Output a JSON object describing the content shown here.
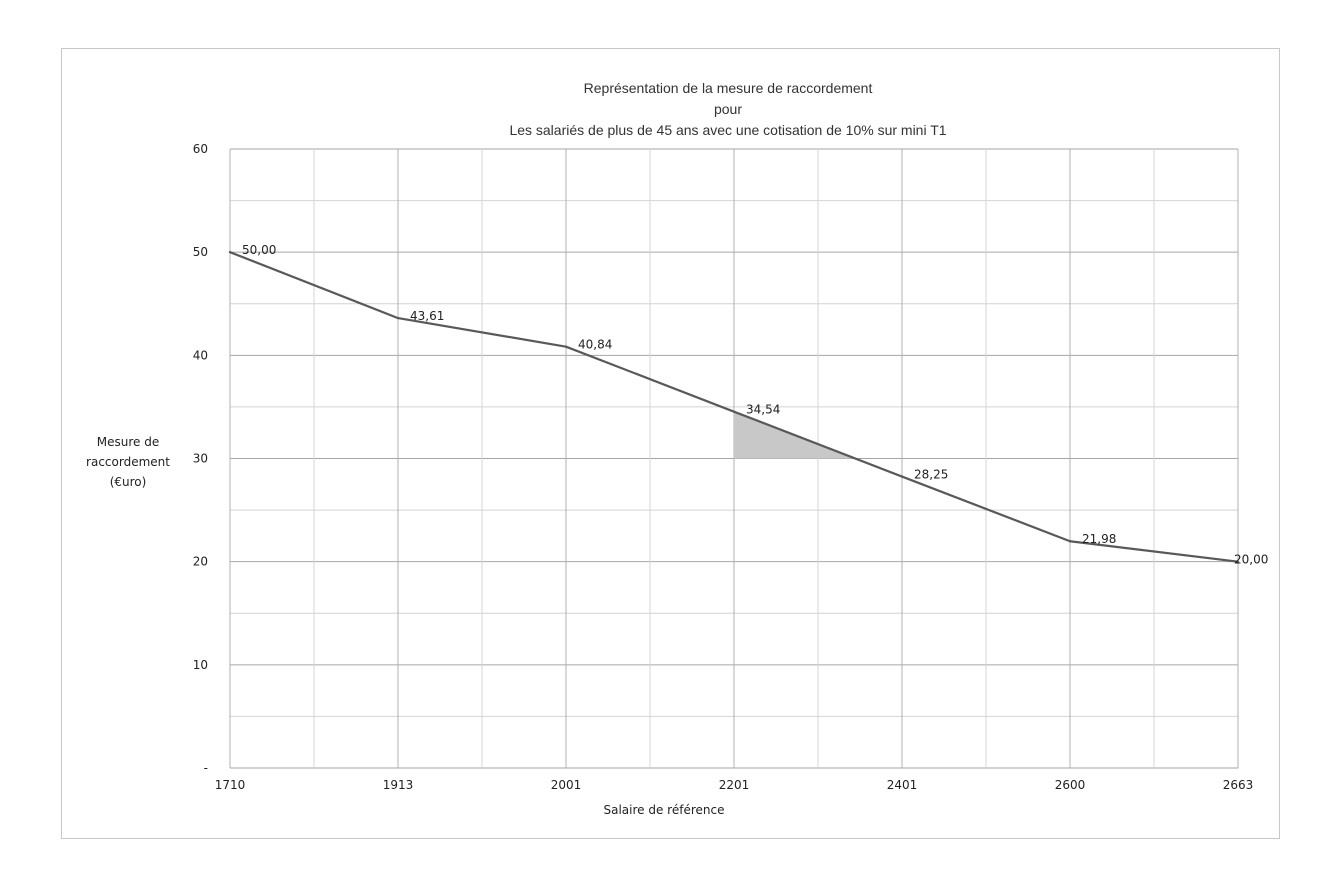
{
  "chart_data": {
    "type": "line",
    "title": [
      "Représentation de la mesure de raccordement",
      "pour",
      "Les salariés de plus de 45 ans avec une cotisation de 10% sur mini T1"
    ],
    "xlabel": "Salaire de référence",
    "ylabel": [
      "Mesure de",
      "raccordement",
      "(€uro)"
    ],
    "x_tick_labels": [
      "1710",
      "1913",
      "2001",
      "2201",
      "2401",
      "2600",
      "2663"
    ],
    "y_tick_labels": [
      "-",
      "10",
      "20",
      "30",
      "40",
      "50",
      "60"
    ],
    "ylim": [
      0,
      60
    ],
    "y_ticks": [
      0,
      10,
      20,
      30,
      40,
      50,
      60
    ],
    "grid": true,
    "series": [
      {
        "values": [
          50.0,
          43.61,
          40.84,
          34.54,
          28.25,
          21.98,
          20.0
        ],
        "labels": [
          "50,00",
          "43,61",
          "40,84",
          "34,54",
          "28,25",
          "21,98",
          "20,00"
        ],
        "color": "#595959"
      }
    ],
    "highlight": {
      "description_free": true,
      "from_x_index": 3,
      "y_floor": 30,
      "color": "#c8c8c8"
    }
  }
}
